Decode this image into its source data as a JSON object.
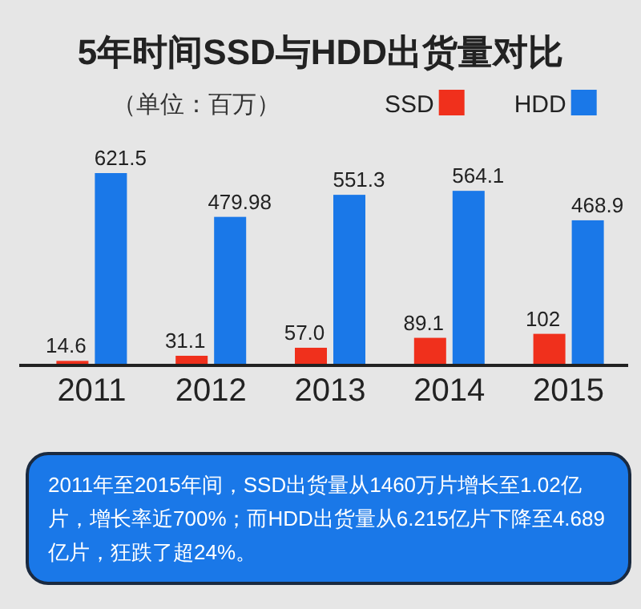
{
  "chart_data": {
    "type": "bar",
    "title": "5年时间SSD与HDD出货量对比",
    "subtitle": "（单位：百万）",
    "categories": [
      "2011",
      "2012",
      "2013",
      "2014",
      "2015"
    ],
    "series": [
      {
        "name": "SSD",
        "color": "#f0301c",
        "values": [
          14.6,
          31.1,
          57.0,
          89.1,
          102
        ],
        "value_labels": [
          "14.6",
          "31.1",
          "57.0",
          "89.1",
          "102"
        ]
      },
      {
        "name": "HDD",
        "color": "#1a78e8",
        "values": [
          621.5,
          479.98,
          551.3,
          564.1,
          468.9
        ],
        "value_labels": [
          "621.5",
          "479.98",
          "551.3",
          "564.1",
          "468.9"
        ]
      }
    ],
    "legend": "top right",
    "annotations": [
      "2011年至2015年间，SSD出货量从1460万片增长至1.02亿片，增长率近700%；而HDD出货量从6.215亿片下降至4.689亿片，狂跌了超24%。"
    ]
  }
}
